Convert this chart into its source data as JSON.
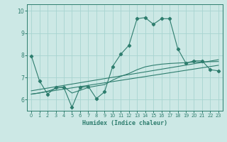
{
  "xlabel": "Humidex (Indice chaleur)",
  "xlim": [
    -0.5,
    23.5
  ],
  "ylim": [
    5.5,
    10.3
  ],
  "yticks": [
    6,
    7,
    8,
    9,
    10
  ],
  "xticks": [
    0,
    1,
    2,
    3,
    4,
    5,
    6,
    7,
    8,
    9,
    10,
    11,
    12,
    13,
    14,
    15,
    16,
    17,
    18,
    19,
    20,
    21,
    22,
    23
  ],
  "bg_color": "#cce8e5",
  "grid_color": "#a8d4d0",
  "line_color": "#2e7d6e",
  "main_x": [
    0,
    1,
    2,
    3,
    4,
    5,
    6,
    7,
    8,
    9,
    10,
    11,
    12,
    13,
    14,
    15,
    16,
    17,
    18,
    19,
    20,
    21,
    22,
    23
  ],
  "main_y": [
    7.98,
    6.85,
    6.25,
    6.55,
    6.55,
    5.65,
    6.55,
    6.6,
    6.05,
    6.35,
    7.5,
    8.05,
    8.45,
    9.65,
    9.7,
    9.4,
    9.65,
    9.65,
    8.3,
    7.65,
    7.75,
    7.75,
    7.35,
    7.3
  ],
  "line1_x": [
    0,
    23
  ],
  "line1_y": [
    6.25,
    7.55
  ],
  "line2_x": [
    0,
    23
  ],
  "line2_y": [
    6.4,
    7.8
  ],
  "curve_x": [
    0,
    1,
    2,
    3,
    4,
    5,
    6,
    7,
    8,
    9,
    10,
    11,
    12,
    13,
    14,
    15,
    16,
    17,
    18,
    19,
    20,
    21,
    22,
    23
  ],
  "curve_y": [
    6.25,
    6.3,
    6.38,
    6.5,
    6.58,
    6.3,
    6.42,
    6.55,
    6.62,
    6.68,
    6.88,
    7.05,
    7.18,
    7.35,
    7.48,
    7.55,
    7.6,
    7.63,
    7.65,
    7.67,
    7.69,
    7.7,
    7.71,
    7.72
  ]
}
